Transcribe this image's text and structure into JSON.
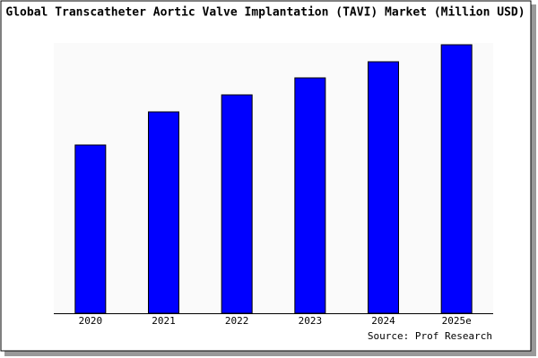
{
  "chart_data": {
    "type": "bar",
    "title": "Global Transcatheter Aortic Valve Implantation (TAVI) Market (Million USD)",
    "source": "Source: Prof Research",
    "categories": [
      "2020",
      "2021",
      "2022",
      "2023",
      "2024",
      "2025e"
    ],
    "values": [
      188,
      225,
      244,
      263,
      281,
      300
    ],
    "color": "#0000ff",
    "ylim": [
      0,
      300
    ]
  }
}
